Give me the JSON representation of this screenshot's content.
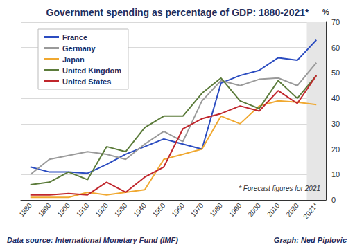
{
  "chart_data": {
    "type": "line",
    "title": "Government spending as percentage of GDP: 1880-2021*",
    "ylabel": "%",
    "categories": [
      "1880",
      "1890",
      "1900",
      "1910",
      "1920",
      "1930",
      "1940",
      "1950",
      "1960",
      "1970",
      "1980",
      "1990",
      "2000",
      "2010",
      "2020",
      "2021*"
    ],
    "series": [
      {
        "name": "France",
        "color": "#2b4cc0",
        "values": [
          13,
          11,
          11,
          10.5,
          14,
          18,
          21,
          24,
          22,
          20,
          46,
          49,
          51,
          56,
          55,
          63
        ]
      },
      {
        "name": "Germany",
        "color": "#9a9a9a",
        "values": [
          10,
          16,
          17.5,
          19,
          18,
          16,
          22,
          27,
          23,
          39,
          47,
          45,
          47.5,
          48,
          45,
          54
        ]
      },
      {
        "name": "Japan",
        "color": "#f0a830",
        "values": [
          1,
          1,
          1,
          3,
          2,
          3,
          4,
          16,
          18,
          20,
          33,
          30,
          37,
          39,
          38.5,
          37.5
        ]
      },
      {
        "name": "United Kingdom",
        "color": "#5b7b3a",
        "values": [
          6,
          7,
          11,
          8,
          21,
          19,
          28.5,
          33,
          33,
          42,
          48,
          39,
          36,
          47,
          40,
          49
        ]
      },
      {
        "name": "United States",
        "color": "#c0262c",
        "values": [
          2,
          2,
          2.5,
          2,
          7,
          3,
          9,
          13,
          28,
          32,
          34,
          37,
          35,
          43,
          38,
          49
        ]
      }
    ],
    "ylim": [
      0,
      70
    ],
    "yticks": [
      0,
      10,
      20,
      30,
      40,
      50,
      60,
      70
    ],
    "grid": true,
    "legend": "upper left",
    "annotations": [
      "* Forecast figures for 2021",
      "Data source: International Monetary Fund (IMF)",
      "Graph: Ned Piplovic"
    ]
  }
}
